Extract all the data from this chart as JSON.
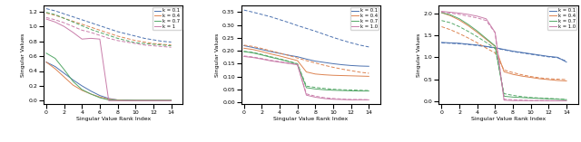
{
  "colors": {
    "k0.1": "#4C72B0",
    "k0.4": "#DD8452",
    "k0.7": "#55A868",
    "k1.0": "#C97DAA"
  },
  "xlabel": "Singular Value Rank Index",
  "ylabel": "Singular Values",
  "plot1": {
    "xlim": [
      -0.3,
      15.3
    ],
    "ylim": [
      -0.04,
      1.28
    ],
    "yticks": [
      0.0,
      0.2,
      0.4,
      0.6,
      0.8,
      1.0,
      1.2
    ],
    "xticks": [
      0,
      2,
      4,
      6,
      8,
      10,
      12,
      14
    ],
    "legend_labels": [
      "k = 0.1",
      "k = 0.4",
      "k = 0.7",
      "k = 1"
    ],
    "lines": {
      "k0.1": {
        "solid": [
          0.52,
          0.46,
          0.37,
          0.28,
          0.2,
          0.13,
          0.07,
          0.03,
          0.01,
          0.01,
          0.005,
          0.005,
          0.005,
          0.005,
          0.005
        ],
        "dashed": [
          1.24,
          1.21,
          1.17,
          1.13,
          1.09,
          1.05,
          1.01,
          0.97,
          0.93,
          0.9,
          0.87,
          0.84,
          0.82,
          0.8,
          0.79
        ]
      },
      "k0.4": {
        "solid": [
          0.52,
          0.43,
          0.32,
          0.21,
          0.14,
          0.09,
          0.05,
          0.02,
          0.01,
          0.005,
          0.005,
          0.005,
          0.005,
          0.005,
          0.005
        ],
        "dashed": [
          1.18,
          1.15,
          1.11,
          1.07,
          1.03,
          0.99,
          0.95,
          0.91,
          0.87,
          0.84,
          0.81,
          0.79,
          0.77,
          0.76,
          0.75
        ]
      },
      "k0.7": {
        "solid": [
          0.64,
          0.57,
          0.42,
          0.26,
          0.15,
          0.09,
          0.04,
          0.01,
          0.005,
          0.005,
          0.005,
          0.005,
          0.005,
          0.005,
          0.005
        ],
        "dashed": [
          1.19,
          1.16,
          1.11,
          1.06,
          1.01,
          0.96,
          0.92,
          0.88,
          0.84,
          0.81,
          0.78,
          0.77,
          0.76,
          0.75,
          0.74
        ]
      },
      "k1.0": {
        "solid": [
          1.1,
          1.06,
          1.0,
          0.92,
          0.83,
          0.84,
          0.83,
          0.0,
          0.0,
          0.0,
          0.0,
          0.0,
          0.0,
          0.0,
          0.0
        ],
        "dashed": [
          1.12,
          1.09,
          1.05,
          1.0,
          0.95,
          0.92,
          0.88,
          0.84,
          0.81,
          0.79,
          0.77,
          0.75,
          0.74,
          0.73,
          0.72
        ]
      }
    }
  },
  "plot2": {
    "xlim": [
      -0.3,
      15.3
    ],
    "ylim": [
      -0.005,
      0.375
    ],
    "yticks": [
      0.0,
      0.05,
      0.1,
      0.15,
      0.2,
      0.25,
      0.3,
      0.35
    ],
    "xticks": [
      0,
      2,
      4,
      6,
      8,
      10,
      12,
      14
    ],
    "legend_labels": [
      "k = 0.1",
      "k = 0.4",
      "k = 0.7",
      "k = 1.0"
    ],
    "lines": {
      "k0.1": {
        "solid": [
          0.22,
          0.213,
          0.205,
          0.197,
          0.19,
          0.183,
          0.177,
          0.168,
          0.16,
          0.155,
          0.15,
          0.146,
          0.143,
          0.141,
          0.14
        ],
        "dashed": [
          0.358,
          0.35,
          0.341,
          0.332,
          0.321,
          0.31,
          0.298,
          0.287,
          0.276,
          0.264,
          0.252,
          0.241,
          0.231,
          0.222,
          0.215
        ]
      },
      "k0.4": {
        "solid": [
          0.21,
          0.205,
          0.197,
          0.188,
          0.18,
          0.171,
          0.162,
          0.118,
          0.11,
          0.107,
          0.105,
          0.104,
          0.103,
          0.102,
          0.101
        ],
        "dashed": [
          0.222,
          0.217,
          0.209,
          0.2,
          0.191,
          0.182,
          0.172,
          0.162,
          0.153,
          0.144,
          0.136,
          0.129,
          0.123,
          0.117,
          0.113
        ]
      },
      "k0.7": {
        "solid": [
          0.197,
          0.192,
          0.184,
          0.175,
          0.167,
          0.158,
          0.148,
          0.057,
          0.052,
          0.049,
          0.047,
          0.046,
          0.045,
          0.044,
          0.044
        ],
        "dashed": [
          0.198,
          0.194,
          0.186,
          0.177,
          0.169,
          0.16,
          0.15,
          0.063,
          0.058,
          0.054,
          0.051,
          0.049,
          0.048,
          0.047,
          0.046
        ]
      },
      "k1.0": {
        "solid": [
          0.178,
          0.174,
          0.168,
          0.161,
          0.156,
          0.151,
          0.146,
          0.028,
          0.02,
          0.015,
          0.012,
          0.011,
          0.01,
          0.01,
          0.01
        ],
        "dashed": [
          0.18,
          0.176,
          0.17,
          0.163,
          0.158,
          0.152,
          0.147,
          0.033,
          0.024,
          0.018,
          0.015,
          0.013,
          0.011,
          0.011,
          0.01
        ]
      }
    }
  },
  "plot3": {
    "xlim": [
      -0.3,
      15.3
    ],
    "ylim": [
      -0.06,
      2.18
    ],
    "yticks": [
      0.0,
      0.5,
      1.0,
      1.5,
      2.0
    ],
    "xticks": [
      0,
      2,
      4,
      6,
      8,
      10,
      12,
      14
    ],
    "legend_labels": [
      "k = 0.1",
      "k = 0.4",
      "k = 0.7",
      "k = 1.0"
    ],
    "lines": {
      "k0.1": {
        "solid": [
          1.34,
          1.33,
          1.32,
          1.3,
          1.28,
          1.25,
          1.22,
          1.18,
          1.14,
          1.11,
          1.08,
          1.05,
          1.02,
          1.0,
          0.89
        ],
        "dashed": [
          1.33,
          1.32,
          1.31,
          1.29,
          1.27,
          1.24,
          1.21,
          1.17,
          1.13,
          1.1,
          1.07,
          1.04,
          1.01,
          0.99,
          0.91
        ]
      },
      "k0.4": {
        "solid": [
          2.02,
          1.95,
          1.85,
          1.72,
          1.57,
          1.41,
          1.25,
          0.67,
          0.61,
          0.57,
          0.54,
          0.51,
          0.49,
          0.47,
          0.46
        ],
        "dashed": [
          1.7,
          1.63,
          1.54,
          1.44,
          1.33,
          1.21,
          1.1,
          0.71,
          0.65,
          0.6,
          0.56,
          0.53,
          0.51,
          0.5,
          0.49
        ]
      },
      "k0.7": {
        "solid": [
          2.02,
          1.97,
          1.88,
          1.75,
          1.6,
          1.43,
          1.26,
          0.11,
          0.09,
          0.08,
          0.07,
          0.06,
          0.05,
          0.04,
          0.03
        ],
        "dashed": [
          1.84,
          1.79,
          1.7,
          1.59,
          1.47,
          1.34,
          1.2,
          0.17,
          0.13,
          0.1,
          0.08,
          0.07,
          0.06,
          0.05,
          0.04
        ]
      },
      "k1.0": {
        "solid": [
          2.05,
          2.03,
          2.01,
          1.98,
          1.94,
          1.88,
          1.57,
          0.02,
          0.01,
          0.01,
          0.01,
          0.01,
          0.005,
          0.005,
          0.005
        ],
        "dashed": [
          2.03,
          2.01,
          1.98,
          1.94,
          1.9,
          1.84,
          1.56,
          0.04,
          0.03,
          0.02,
          0.01,
          0.01,
          0.01,
          0.005,
          0.005
        ]
      }
    }
  }
}
